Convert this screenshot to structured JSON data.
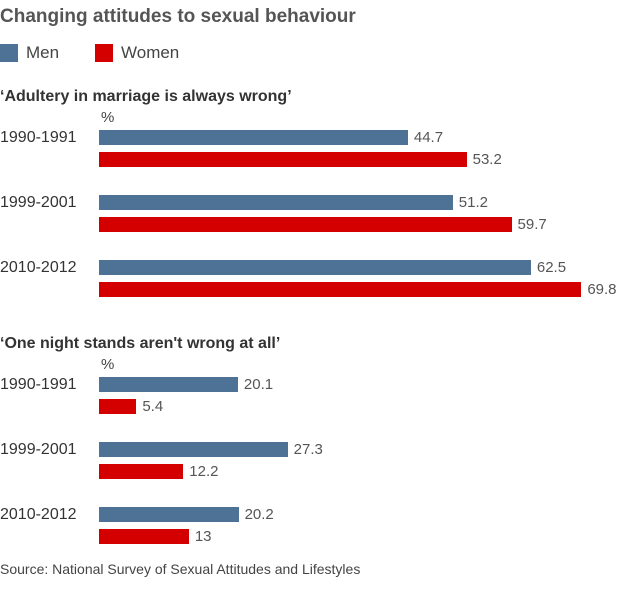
{
  "chart_data": {
    "type": "bar",
    "orientation": "horizontal",
    "title": "Changing attitudes to sexual behaviour",
    "legend": {
      "placement": "top-left",
      "items": [
        {
          "name": "Men",
          "color": "#4d7296"
        },
        {
          "name": "Women",
          "color": "#d40000"
        }
      ]
    },
    "panels": [
      {
        "subtitle": "‘Adultery in marriage is always wrong’",
        "unit": "%",
        "categories": [
          "1990-1991",
          "1999-2001",
          "2010-2012"
        ],
        "series": [
          {
            "name": "Men",
            "color": "#4d7296",
            "values": [
              44.7,
              51.2,
              62.5
            ],
            "labels": [
              "44.7",
              "51.2",
              "62.5"
            ]
          },
          {
            "name": "Women",
            "color": "#d40000",
            "values": [
              53.2,
              59.7,
              69.8
            ],
            "labels": [
              "53.2",
              "59.7",
              "69.8"
            ]
          }
        ]
      },
      {
        "subtitle": "‘One night stands aren't wrong at all’",
        "unit": "%",
        "categories": [
          "1990-1991",
          "1999-2001",
          "2010-2012"
        ],
        "series": [
          {
            "name": "Men",
            "color": "#4d7296",
            "values": [
              20.1,
              27.3,
              20.2
            ],
            "labels": [
              "20.1",
              "27.3",
              "20.2"
            ]
          },
          {
            "name": "Women",
            "color": "#d40000",
            "values": [
              5.4,
              12.2,
              13
            ],
            "labels": [
              "5.4",
              "12.2",
              "13"
            ]
          }
        ]
      }
    ],
    "grid": false,
    "source": "Source: National Survey of Sexual Attitudes and Lifestyles"
  }
}
